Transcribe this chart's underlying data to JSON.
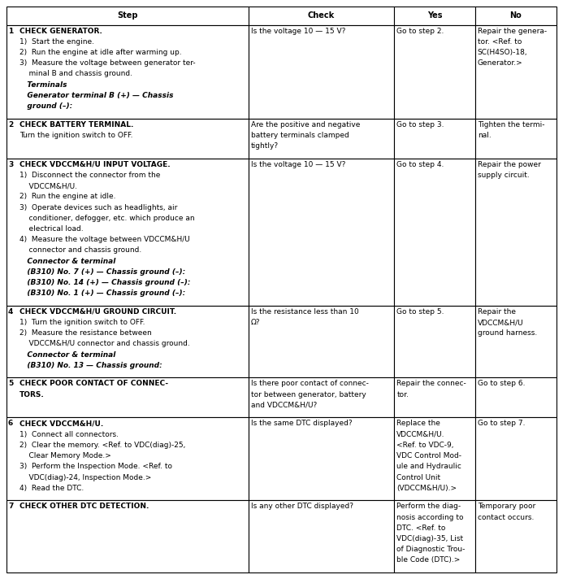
{
  "col_headers": [
    "Step",
    "Check",
    "Yes",
    "No"
  ],
  "font_size": 6.5,
  "rows": [
    {
      "step": "1",
      "step_lines": [
        {
          "text": "CHECK GENERATOR.",
          "bold": true,
          "italic": false,
          "indent": 0
        },
        {
          "text": "1)  Start the engine.",
          "bold": false,
          "italic": false,
          "indent": 0
        },
        {
          "text": "2)  Run the engine at idle after warming up.",
          "bold": false,
          "italic": false,
          "indent": 0
        },
        {
          "text": "3)  Measure the voltage between generator ter-",
          "bold": false,
          "italic": false,
          "indent": 0
        },
        {
          "text": "    minal B and chassis ground.",
          "bold": false,
          "italic": false,
          "indent": 0
        },
        {
          "text": "   Terminals",
          "bold": true,
          "italic": true,
          "indent": 0
        },
        {
          "text": "   Generator terminal B (+) — Chassis",
          "bold": true,
          "italic": true,
          "indent": 0
        },
        {
          "text": "   ground (–):",
          "bold": true,
          "italic": true,
          "indent": 0
        }
      ],
      "check_lines": [
        {
          "text": "Is the voltage 10 — 15 V?",
          "bold": false,
          "italic": false
        }
      ],
      "yes_lines": [
        {
          "text": "Go to step 2.",
          "bold": false,
          "italic": false
        }
      ],
      "no_lines": [
        {
          "text": "Repair the genera-",
          "bold": false,
          "italic": false
        },
        {
          "text": "tor. <Ref. to",
          "bold": false,
          "italic": false
        },
        {
          "text": "SC(H4SO)-18,",
          "bold": false,
          "italic": false
        },
        {
          "text": "Generator.>",
          "bold": false,
          "italic": false
        }
      ]
    },
    {
      "step": "2",
      "step_lines": [
        {
          "text": "CHECK BATTERY TERMINAL.",
          "bold": true,
          "italic": false,
          "indent": 0
        },
        {
          "text": "Turn the ignition switch to OFF.",
          "bold": false,
          "italic": false,
          "indent": 0
        }
      ],
      "check_lines": [
        {
          "text": "Are the positive and negative",
          "bold": false,
          "italic": false
        },
        {
          "text": "battery terminals clamped",
          "bold": false,
          "italic": false
        },
        {
          "text": "tightly?",
          "bold": false,
          "italic": false
        }
      ],
      "yes_lines": [
        {
          "text": "Go to step 3.",
          "bold": false,
          "italic": false
        }
      ],
      "no_lines": [
        {
          "text": "Tighten the termi-",
          "bold": false,
          "italic": false
        },
        {
          "text": "nal.",
          "bold": false,
          "italic": false
        }
      ]
    },
    {
      "step": "3",
      "step_lines": [
        {
          "text": "CHECK VDCCM&H/U INPUT VOLTAGE.",
          "bold": true,
          "italic": false,
          "indent": 0
        },
        {
          "text": "1)  Disconnect the connector from the",
          "bold": false,
          "italic": false,
          "indent": 0
        },
        {
          "text": "    VDCCM&H/U.",
          "bold": false,
          "italic": false,
          "indent": 0
        },
        {
          "text": "2)  Run the engine at idle.",
          "bold": false,
          "italic": false,
          "indent": 0
        },
        {
          "text": "3)  Operate devices such as headlights, air",
          "bold": false,
          "italic": false,
          "indent": 0
        },
        {
          "text": "    conditioner, defogger, etc. which produce an",
          "bold": false,
          "italic": false,
          "indent": 0
        },
        {
          "text": "    electrical load.",
          "bold": false,
          "italic": false,
          "indent": 0
        },
        {
          "text": "4)  Measure the voltage between VDCCM&H/U",
          "bold": false,
          "italic": false,
          "indent": 0
        },
        {
          "text": "    connector and chassis ground.",
          "bold": false,
          "italic": false,
          "indent": 0
        },
        {
          "text": "   Connector & terminal",
          "bold": true,
          "italic": true,
          "indent": 0
        },
        {
          "text": "   (B310) No. 7 (+) — Chassis ground (–):",
          "bold": true,
          "italic": true,
          "indent": 0
        },
        {
          "text": "   (B310) No. 14 (+) — Chassis ground (–):",
          "bold": true,
          "italic": true,
          "indent": 0
        },
        {
          "text": "   (B310) No. 1 (+) — Chassis ground (–):",
          "bold": true,
          "italic": true,
          "indent": 0
        }
      ],
      "check_lines": [
        {
          "text": "Is the voltage 10 — 15 V?",
          "bold": false,
          "italic": false
        }
      ],
      "yes_lines": [
        {
          "text": "Go to step 4.",
          "bold": false,
          "italic": false
        }
      ],
      "no_lines": [
        {
          "text": "Repair the power",
          "bold": false,
          "italic": false
        },
        {
          "text": "supply circuit.",
          "bold": false,
          "italic": false
        }
      ]
    },
    {
      "step": "4",
      "step_lines": [
        {
          "text": "CHECK VDCCM&H/U GROUND CIRCUIT.",
          "bold": true,
          "italic": false,
          "indent": 0
        },
        {
          "text": "1)  Turn the ignition switch to OFF.",
          "bold": false,
          "italic": false,
          "indent": 0
        },
        {
          "text": "2)  Measure the resistance between",
          "bold": false,
          "italic": false,
          "indent": 0
        },
        {
          "text": "    VDCCM&H/U connector and chassis ground.",
          "bold": false,
          "italic": false,
          "indent": 0
        },
        {
          "text": "   Connector & terminal",
          "bold": true,
          "italic": true,
          "indent": 0
        },
        {
          "text": "   (B310) No. 13 — Chassis ground:",
          "bold": true,
          "italic": true,
          "indent": 0
        }
      ],
      "check_lines": [
        {
          "text": "Is the resistance less than 10",
          "bold": false,
          "italic": false
        },
        {
          "text": "Ω?",
          "bold": false,
          "italic": false
        }
      ],
      "yes_lines": [
        {
          "text": "Go to step 5.",
          "bold": false,
          "italic": false
        }
      ],
      "no_lines": [
        {
          "text": "Repair the",
          "bold": false,
          "italic": false
        },
        {
          "text": "VDCCM&H/U",
          "bold": false,
          "italic": false
        },
        {
          "text": "ground harness.",
          "bold": false,
          "italic": false
        }
      ]
    },
    {
      "step": "5",
      "step_lines": [
        {
          "text": "CHECK POOR CONTACT OF CONNEC-",
          "bold": true,
          "italic": false,
          "indent": 0
        },
        {
          "text": "TORS.",
          "bold": true,
          "italic": false,
          "indent": 0
        }
      ],
      "check_lines": [
        {
          "text": "Is there poor contact of connec-",
          "bold": false,
          "italic": false
        },
        {
          "text": "tor between generator, battery",
          "bold": false,
          "italic": false
        },
        {
          "text": "and VDCCM&H/U?",
          "bold": false,
          "italic": false
        }
      ],
      "yes_lines": [
        {
          "text": "Repair the connec-",
          "bold": false,
          "italic": false
        },
        {
          "text": "tor.",
          "bold": false,
          "italic": false
        }
      ],
      "no_lines": [
        {
          "text": "Go to step 6.",
          "bold": false,
          "italic": false
        }
      ]
    },
    {
      "step": "6",
      "step_lines": [
        {
          "text": "CHECK VDCCM&H/U.",
          "bold": true,
          "italic": false,
          "indent": 0
        },
        {
          "text": "1)  Connect all connectors.",
          "bold": false,
          "italic": false,
          "indent": 0
        },
        {
          "text": "2)  Clear the memory. <Ref. to VDC(diag)-25,",
          "bold": false,
          "italic": false,
          "indent": 0
        },
        {
          "text": "    Clear Memory Mode.>",
          "bold": false,
          "italic": false,
          "indent": 0
        },
        {
          "text": "3)  Perform the Inspection Mode. <Ref. to",
          "bold": false,
          "italic": false,
          "indent": 0
        },
        {
          "text": "    VDC(diag)-24, Inspection Mode.>",
          "bold": false,
          "italic": false,
          "indent": 0
        },
        {
          "text": "4)  Read the DTC.",
          "bold": false,
          "italic": false,
          "indent": 0
        }
      ],
      "check_lines": [
        {
          "text": "Is the same DTC displayed?",
          "bold": false,
          "italic": false
        }
      ],
      "yes_lines": [
        {
          "text": "Replace the",
          "bold": false,
          "italic": false
        },
        {
          "text": "VDCCM&H/U.",
          "bold": false,
          "italic": false
        },
        {
          "text": "<Ref. to VDC-9,",
          "bold": false,
          "italic": false
        },
        {
          "text": "VDC Control Mod-",
          "bold": false,
          "italic": false
        },
        {
          "text": "ule and Hydraulic",
          "bold": false,
          "italic": false
        },
        {
          "text": "Control Unit",
          "bold": false,
          "italic": false
        },
        {
          "text": "(VDCCM&H/U).>",
          "bold": false,
          "italic": false
        }
      ],
      "no_lines": [
        {
          "text": "Go to step 7.",
          "bold": false,
          "italic": false
        }
      ]
    },
    {
      "step": "7",
      "step_lines": [
        {
          "text": "CHECK OTHER DTC DETECTION.",
          "bold": true,
          "italic": false,
          "indent": 0
        }
      ],
      "check_lines": [
        {
          "text": "Is any other DTC displayed?",
          "bold": false,
          "italic": false
        }
      ],
      "yes_lines": [
        {
          "text": "Perform the diag-",
          "bold": false,
          "italic": false
        },
        {
          "text": "nosis according to",
          "bold": false,
          "italic": false
        },
        {
          "text": "DTC. <Ref. to",
          "bold": false,
          "italic": false
        },
        {
          "text": "VDC(diag)-35, List",
          "bold": false,
          "italic": false
        },
        {
          "text": "of Diagnostic Trou-",
          "bold": false,
          "italic": false
        },
        {
          "text": "ble Code (DTC).>",
          "bold": false,
          "italic": false
        }
      ],
      "no_lines": [
        {
          "text": "Temporary poor",
          "bold": false,
          "italic": false
        },
        {
          "text": "contact occurs.",
          "bold": false,
          "italic": false
        }
      ]
    }
  ]
}
